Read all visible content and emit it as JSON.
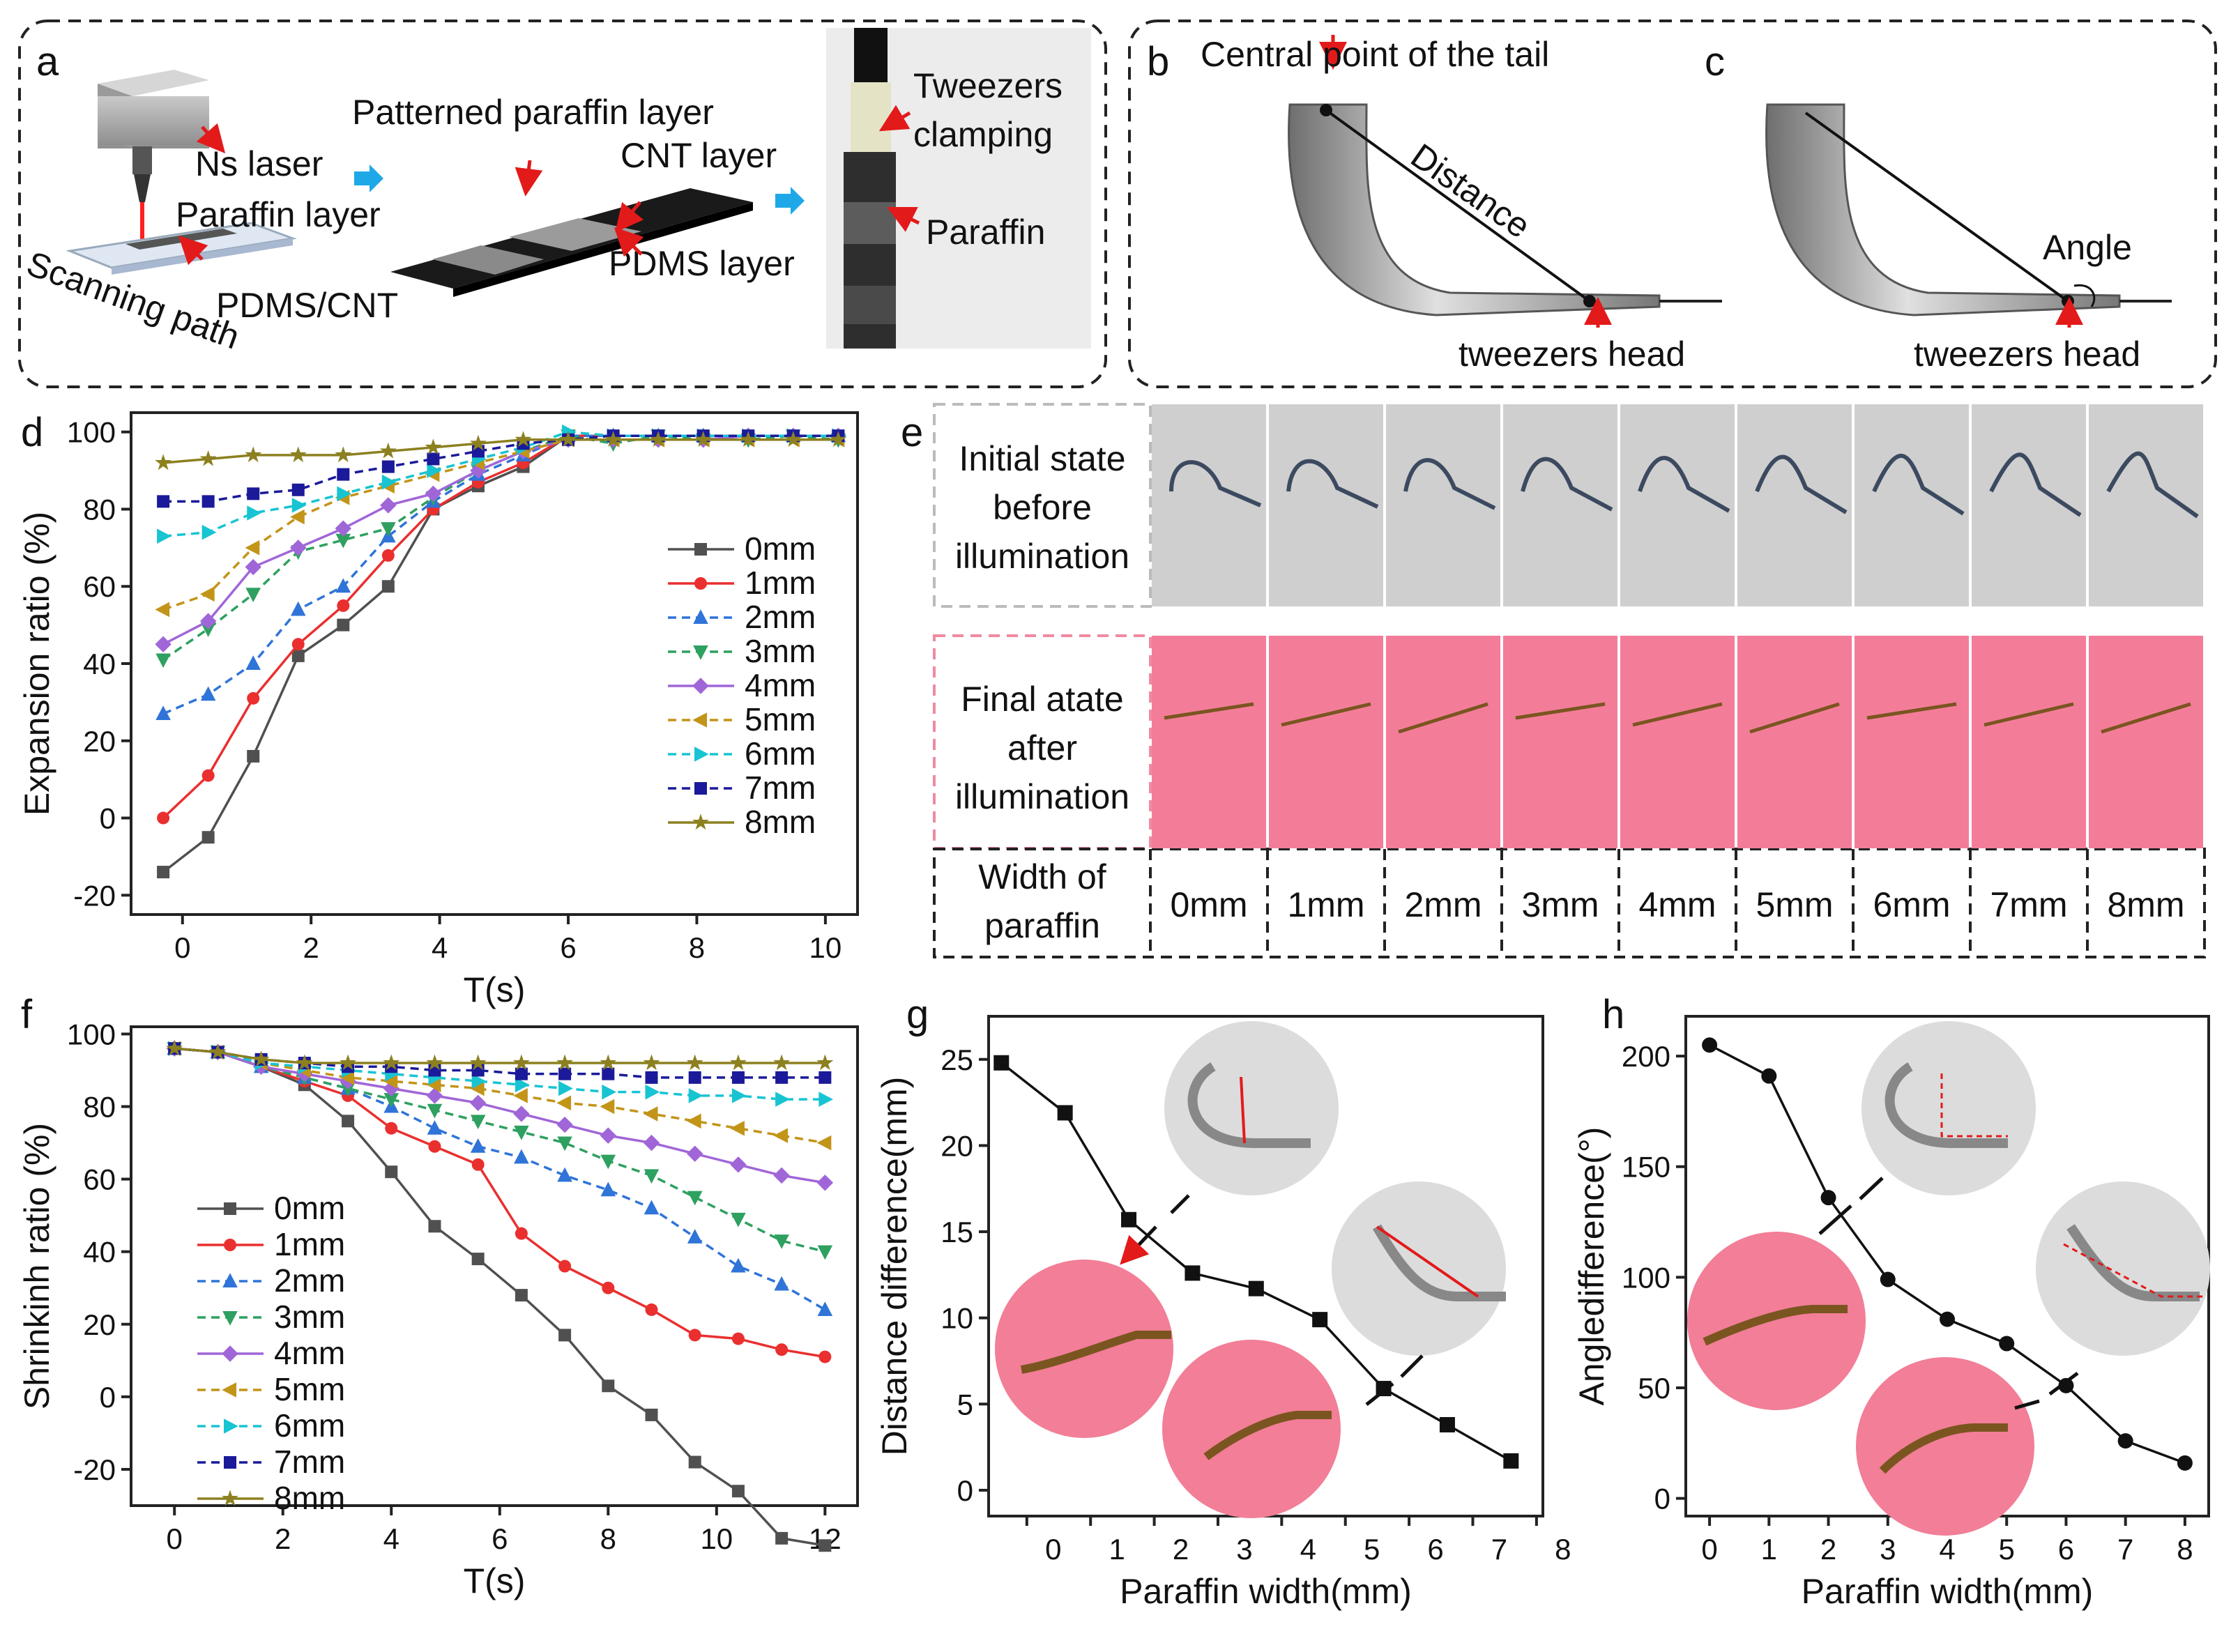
{
  "panel_labels": {
    "a": "a",
    "b": "b",
    "c": "c",
    "d": "d",
    "e": "e",
    "f": "f",
    "g": "g",
    "h": "h"
  },
  "panel_a": {
    "ns_laser": "Ns laser",
    "paraffin_layer": "Paraffin layer",
    "pdms_cnt": "PDMS/CNT",
    "scanning_path": "Scanning path",
    "patterned_paraffin": "Patterned paraffin layer",
    "cnt_layer": "CNT layer",
    "pdms_layer": "PDMS layer",
    "tweezers_clamping_1": "Tweezers",
    "tweezers_clamping_2": "clamping",
    "paraffin": "Paraffin"
  },
  "panel_b": {
    "central_point": "Central point of the tail",
    "distance": "Distance",
    "tweezers_head": "tweezers head"
  },
  "panel_c": {
    "angle": "Angle",
    "tweezers_head": "tweezers head"
  },
  "panel_e": {
    "row1_line1": "Initial state",
    "row1_line2": "before",
    "row1_line3": "illumination",
    "row2_line1": "Final atate",
    "row2_line2": "after",
    "row2_line3": "illumination",
    "row3_line1": "Width of",
    "row3_line2": "paraffin",
    "widths": [
      "0mm",
      "1mm",
      "2mm",
      "3mm",
      "4mm",
      "5mm",
      "6mm",
      "7mm",
      "8mm"
    ],
    "colors": {
      "gray": "#cfcfcf",
      "pink": "#f37d99"
    }
  },
  "chart_data": [
    {
      "id": "d",
      "type": "line",
      "xlabel": "T(s)",
      "ylabel": "Expansion ratio (%)",
      "xlim": [
        -0.8,
        10.5
      ],
      "ylim": [
        -25,
        105
      ],
      "xticks": [
        0,
        2,
        4,
        6,
        8,
        10
      ],
      "yticks": [
        -20,
        0,
        20,
        40,
        60,
        80,
        100
      ],
      "x": [
        -0.3,
        0.4,
        1.1,
        1.8,
        2.5,
        3.2,
        3.9,
        4.6,
        5.3,
        6.0,
        6.7,
        7.4,
        8.1,
        8.8,
        9.5,
        10.2
      ],
      "series": [
        {
          "name": "0mm",
          "color": "#505050",
          "marker": "square",
          "dash": false,
          "values": [
            -14,
            -5,
            16,
            42,
            50,
            60,
            80,
            86,
            91,
            99,
            99,
            99,
            99,
            99,
            99,
            99
          ]
        },
        {
          "name": "1mm",
          "color": "#ea2f2f",
          "marker": "circle",
          "dash": false,
          "values": [
            0,
            11,
            31,
            45,
            55,
            68,
            80,
            87,
            92,
            99,
            99,
            99,
            99,
            99,
            99,
            99
          ]
        },
        {
          "name": "2mm",
          "color": "#2f74d8",
          "marker": "triangle-up",
          "dash": true,
          "values": [
            27,
            32,
            40,
            54,
            60,
            73,
            82,
            89,
            94,
            99,
            99,
            99,
            99,
            99,
            99,
            99
          ]
        },
        {
          "name": "3mm",
          "color": "#2ea060",
          "marker": "triangle-down",
          "dash": true,
          "values": [
            41,
            49,
            58,
            69,
            72,
            75,
            83,
            90,
            95,
            99,
            97,
            99,
            98,
            98,
            99,
            98
          ]
        },
        {
          "name": "4mm",
          "color": "#a066d8",
          "marker": "diamond",
          "dash": false,
          "values": [
            45,
            51,
            65,
            70,
            75,
            81,
            84,
            90,
            95,
            98,
            98,
            98,
            98,
            99,
            99,
            99
          ]
        },
        {
          "name": "5mm",
          "color": "#c29418",
          "marker": "triangle-left",
          "dash": true,
          "values": [
            54,
            58,
            70,
            78,
            83,
            86,
            89,
            92,
            95,
            98,
            98,
            98,
            98,
            98,
            98,
            98
          ]
        },
        {
          "name": "6mm",
          "color": "#18c4d2",
          "marker": "triangle-right",
          "dash": true,
          "values": [
            73,
            74,
            79,
            81,
            84,
            87,
            90,
            93,
            96,
            100,
            99,
            99,
            99,
            99,
            99,
            99
          ]
        },
        {
          "name": "7mm",
          "color": "#1a1a9a",
          "marker": "square",
          "dash": true,
          "values": [
            82,
            82,
            84,
            85,
            89,
            91,
            93,
            95,
            97,
            98,
            99,
            99,
            99,
            99,
            99,
            99
          ]
        },
        {
          "name": "8mm",
          "color": "#8c8020",
          "marker": "star",
          "dash": false,
          "values": [
            92,
            93,
            94,
            94,
            94,
            95,
            96,
            97,
            98,
            98,
            98,
            98,
            98,
            98,
            98,
            98
          ]
        }
      ]
    },
    {
      "id": "f",
      "type": "line",
      "xlabel": "T(s)",
      "ylabel": "Shrinkinh ratio (%)",
      "xlim": [
        -0.8,
        12.6
      ],
      "ylim": [
        -30,
        102
      ],
      "xticks": [
        0,
        2,
        4,
        6,
        8,
        10,
        12
      ],
      "yticks": [
        -20,
        0,
        20,
        40,
        60,
        80,
        100
      ],
      "x": [
        0,
        0.8,
        1.6,
        2.4,
        3.2,
        4.0,
        4.8,
        5.6,
        6.4,
        7.2,
        8.0,
        8.8,
        9.6,
        10.4,
        11.2,
        12.0
      ],
      "series": [
        {
          "name": "0mm",
          "color": "#505050",
          "marker": "square",
          "dash": false,
          "values": [
            96,
            95,
            91,
            86,
            76,
            62,
            47,
            38,
            28,
            17,
            3,
            -5,
            -18,
            -26,
            -39,
            -41
          ]
        },
        {
          "name": "1mm",
          "color": "#ea2f2f",
          "marker": "circle",
          "dash": false,
          "values": [
            96,
            95,
            91,
            87,
            83,
            74,
            69,
            64,
            45,
            36,
            30,
            24,
            17,
            16,
            13,
            11
          ]
        },
        {
          "name": "2mm",
          "color": "#2f74d8",
          "marker": "triangle-up",
          "dash": true,
          "values": [
            96,
            95,
            91,
            88,
            85,
            80,
            74,
            69,
            66,
            61,
            57,
            52,
            44,
            36,
            31,
            24
          ]
        },
        {
          "name": "3mm",
          "color": "#2ea060",
          "marker": "triangle-down",
          "dash": true,
          "values": [
            96,
            95,
            91,
            88,
            85,
            82,
            79,
            76,
            73,
            70,
            65,
            61,
            55,
            49,
            43,
            40
          ]
        },
        {
          "name": "4mm",
          "color": "#a066d8",
          "marker": "diamond",
          "dash": false,
          "values": [
            96,
            95,
            91,
            89,
            87,
            85,
            83,
            81,
            78,
            75,
            72,
            70,
            67,
            64,
            61,
            59
          ]
        },
        {
          "name": "5mm",
          "color": "#c29418",
          "marker": "triangle-left",
          "dash": true,
          "values": [
            96,
            95,
            92,
            90,
            88,
            87,
            86,
            85,
            83,
            81,
            80,
            78,
            76,
            74,
            72,
            70
          ]
        },
        {
          "name": "6mm",
          "color": "#18c4d2",
          "marker": "triangle-right",
          "dash": true,
          "values": [
            96,
            95,
            92,
            91,
            90,
            89,
            88,
            87,
            86,
            85,
            84,
            84,
            83,
            83,
            82,
            82
          ]
        },
        {
          "name": "7mm",
          "color": "#1a1a9a",
          "marker": "square",
          "dash": true,
          "values": [
            96,
            95,
            93,
            92,
            91,
            91,
            90,
            90,
            89,
            89,
            89,
            88,
            88,
            88,
            88,
            88
          ]
        },
        {
          "name": "8mm",
          "color": "#8c8020",
          "marker": "star",
          "dash": false,
          "values": [
            96,
            95,
            93,
            92,
            92,
            92,
            92,
            92,
            92,
            92,
            92,
            92,
            92,
            92,
            92,
            92
          ]
        }
      ]
    },
    {
      "id": "g",
      "type": "line",
      "xlabel": "Paraffin width(mm)",
      "ylabel": "Distance difference(mm)",
      "xlim": [
        -0.6,
        8.1
      ],
      "ylim": [
        -1.5,
        27.5
      ],
      "xticks": [
        0,
        1,
        2,
        3,
        4,
        5,
        6,
        7,
        8
      ],
      "yticks": [
        0,
        5,
        10,
        15,
        20,
        25
      ],
      "x": [
        -0.4,
        0.6,
        1.6,
        2.6,
        3.6,
        4.6,
        5.6,
        6.6,
        7.6
      ],
      "series": [
        {
          "name": "Distance difference",
          "color": "#111111",
          "marker": "square",
          "values": [
            24.8,
            21.9,
            15.7,
            12.6,
            11.7,
            9.9,
            5.9,
            3.8,
            1.7
          ]
        }
      ]
    },
    {
      "id": "h",
      "type": "line",
      "xlabel": "Paraffin width(mm)",
      "ylabel": "Angledifference(°)",
      "xlim": [
        -0.4,
        8.4
      ],
      "ylim": [
        -8,
        218
      ],
      "xticks": [
        0,
        1,
        2,
        3,
        4,
        5,
        6,
        7,
        8
      ],
      "yticks": [
        0,
        50,
        100,
        150,
        200
      ],
      "x": [
        0,
        1,
        2,
        3,
        4,
        5,
        6,
        7,
        8
      ],
      "series": [
        {
          "name": "Angle difference",
          "color": "#111111",
          "marker": "circle",
          "values": [
            205,
            191,
            136,
            99,
            81,
            70,
            51,
            26,
            16
          ]
        }
      ]
    }
  ]
}
